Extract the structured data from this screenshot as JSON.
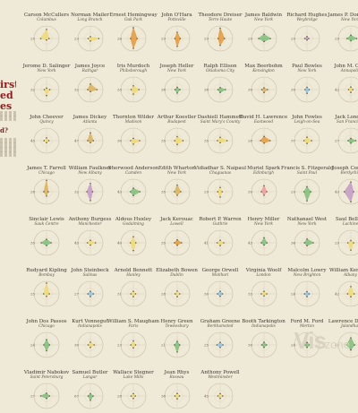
{
  "title": {
    "lines": [
      "irst",
      "ed",
      "es"
    ]
  },
  "aside_mark": "d?",
  "watermark": {
    "brand_a": "Vis",
    "brand_b": "zone"
  },
  "chart_data": {
    "type": "small-multiples-radar",
    "title": "",
    "xlabel": "",
    "ylabel": "",
    "ylim": [
      0,
      1
    ],
    "axes": [
      "a",
      "b",
      "c",
      "d"
    ],
    "palette": {
      "yellow": "#f0da73",
      "orange": "#e59a3c",
      "green": "#7ec07a",
      "blue": "#8ec3e8",
      "pink": "#ef9b9b",
      "purple": "#c59ac7",
      "mustard": "#d9b25b"
    },
    "authors": [
      {
        "name": "Carson McCullers",
        "place": "Columbus",
        "color": "yellow",
        "values": [
          0.72,
          0.2,
          0.12,
          0.46
        ],
        "label": "25"
      },
      {
        "name": "Norman Mailer",
        "place": "Long Branch",
        "color": "yellow",
        "values": [
          0.15,
          0.66,
          0.2,
          0.18
        ],
        "label": "23"
      },
      {
        "name": "Ernest Hemingway",
        "place": "Oak Park",
        "color": "orange",
        "values": [
          0.86,
          0.3,
          0.78,
          0.22
        ],
        "label": "26"
      },
      {
        "name": "John O'Hara",
        "place": "Pottsville",
        "color": "orange",
        "values": [
          0.5,
          0.24,
          0.62,
          0.18
        ],
        "label": "29"
      },
      {
        "name": "Theodore Dreiser",
        "place": "Terre Haute",
        "color": "orange",
        "values": [
          0.82,
          0.34,
          0.54,
          0.16
        ],
        "label": "29"
      },
      {
        "name": "James Baldwin",
        "place": "New York",
        "color": "green",
        "values": [
          0.34,
          0.5,
          0.24,
          0.42
        ],
        "label": "29"
      },
      {
        "name": "Richard Hughes",
        "place": "Weybridge",
        "color": "purple",
        "values": [
          0.16,
          0.14,
          0.12,
          0.18
        ],
        "label": "29"
      },
      {
        "name": "James P. Donleavy",
        "place": "New York",
        "color": "green",
        "values": [
          0.26,
          0.46,
          0.18,
          0.3
        ],
        "label": "29"
      },
      {
        "name": "Jerome D. Salinger",
        "place": "New York",
        "color": "yellow",
        "values": [
          0.12,
          0.26,
          0.48,
          0.18
        ],
        "label": "32"
      },
      {
        "name": "James Joyce",
        "place": "Rathgar",
        "color": "mustard",
        "values": [
          0.44,
          0.52,
          0.16,
          0.22
        ],
        "label": "32"
      },
      {
        "name": "Iris Murdoch",
        "place": "Phibsborough",
        "color": "yellow",
        "values": [
          0.3,
          0.44,
          0.36,
          0.18
        ],
        "label": "35"
      },
      {
        "name": "Joseph Heller",
        "place": "New York",
        "color": "green",
        "values": [
          0.18,
          0.22,
          0.28,
          0.18
        ],
        "label": "38"
      },
      {
        "name": "Ralph Ellison",
        "place": "Oklahoma City",
        "color": "green",
        "values": [
          0.16,
          0.42,
          0.22,
          0.18
        ],
        "label": "38"
      },
      {
        "name": "Max Beerbohm",
        "place": "Kensington",
        "color": "mustard",
        "values": [
          0.14,
          0.28,
          0.24,
          0.18
        ],
        "label": "39"
      },
      {
        "name": "Paul Bowles",
        "place": "New York",
        "color": "blue",
        "values": [
          0.18,
          0.18,
          0.3,
          0.16
        ],
        "label": "39"
      },
      {
        "name": "John M. Cain",
        "place": "Annapolis",
        "color": "yellow",
        "values": [
          0.2,
          0.16,
          0.22,
          0.18
        ],
        "label": "42"
      },
      {
        "name": "John Cheever",
        "place": "Quincy",
        "color": "yellow",
        "values": [
          0.22,
          0.18,
          0.16,
          0.2
        ],
        "label": "45"
      },
      {
        "name": "James Dickey",
        "place": "Atlanta",
        "color": "mustard",
        "values": [
          0.62,
          0.24,
          0.16,
          0.22
        ],
        "label": "47"
      },
      {
        "name": "Thornton Wilder",
        "place": "Madison",
        "color": "yellow",
        "values": [
          0.18,
          0.5,
          0.28,
          0.22
        ],
        "label": "30"
      },
      {
        "name": "Arthur Koestler",
        "place": "Budapest",
        "color": "yellow",
        "values": [
          0.32,
          0.46,
          0.3,
          0.2
        ],
        "label": "35"
      },
      {
        "name": "Dashiell Hammett",
        "place": "Saint Mary's County",
        "color": "yellow",
        "values": [
          0.26,
          0.54,
          0.16,
          0.22
        ],
        "label": "35"
      },
      {
        "name": "David H. Lawrence",
        "place": "Eastwood",
        "color": "orange",
        "values": [
          0.34,
          0.48,
          0.2,
          0.28
        ],
        "label": "28"
      },
      {
        "name": "John Fowles",
        "place": "Leigh-on-Sea",
        "color": "yellow",
        "values": [
          0.28,
          0.36,
          0.22,
          0.24
        ],
        "label": "37"
      },
      {
        "name": "Jack London",
        "place": "San Francisco",
        "color": "green",
        "values": [
          0.18,
          0.38,
          0.2,
          0.22
        ],
        "label": "27"
      },
      {
        "name": "James T. Farrell",
        "place": "Chicago",
        "color": "mustard",
        "values": [
          0.9,
          0.14,
          0.34,
          0.22
        ],
        "label": "28"
      },
      {
        "name": "William Faulkner",
        "place": "New Albany",
        "color": "purple",
        "values": [
          0.66,
          0.18,
          0.7,
          0.28
        ],
        "label": "32"
      },
      {
        "name": "Sherwood Anderson",
        "place": "Camden",
        "color": "green",
        "values": [
          0.28,
          0.52,
          0.3,
          0.24
        ],
        "label": "43"
      },
      {
        "name": "Edith Wharton",
        "place": "New York",
        "color": "mustard",
        "values": [
          0.52,
          0.28,
          0.28,
          0.22
        ],
        "label": "35"
      },
      {
        "name": "Vidiadhar S. Naipaul",
        "place": "Chaguanas",
        "color": "yellow",
        "values": [
          0.34,
          0.16,
          0.42,
          0.2
        ],
        "label": "29"
      },
      {
        "name": "Muriel Spark",
        "place": "Edinburgh",
        "color": "pink",
        "values": [
          0.48,
          0.22,
          0.28,
          0.22
        ],
        "label": "39"
      },
      {
        "name": "Francis S. Fitzgerald",
        "place": "Saint Paul",
        "color": "green",
        "values": [
          0.4,
          0.3,
          0.72,
          0.24
        ],
        "label": "29"
      },
      {
        "name": "Joseph Conrad",
        "place": "Berdychiv",
        "color": "purple",
        "values": [
          0.76,
          0.22,
          0.8,
          0.52
        ],
        "label": "43"
      },
      {
        "name": "Sinclair Lewis",
        "place": "Sauk Centre",
        "color": "green",
        "values": [
          0.28,
          0.36,
          0.22,
          0.42
        ],
        "label": "35"
      },
      {
        "name": "Anthony Burgess",
        "place": "Manchester",
        "color": "yellow",
        "values": [
          0.2,
          0.4,
          0.18,
          0.24
        ],
        "label": "45"
      },
      {
        "name": "Aldous Huxley",
        "place": "Godalming",
        "color": "yellow",
        "values": [
          0.48,
          0.2,
          0.62,
          0.24
        ],
        "label": "40"
      },
      {
        "name": "Jack Kerouac",
        "place": "Lowell",
        "color": "orange",
        "values": [
          0.24,
          0.34,
          0.2,
          0.22
        ],
        "label": "35"
      },
      {
        "name": "Robert P. Warren",
        "place": "Guthrie",
        "color": "yellow",
        "values": [
          0.2,
          0.28,
          0.22,
          0.24
        ],
        "label": "41"
      },
      {
        "name": "Henry Miller",
        "place": "New York",
        "color": "green",
        "values": [
          0.4,
          0.24,
          0.18,
          0.22
        ],
        "label": "43"
      },
      {
        "name": "Nathanael West",
        "place": "New York",
        "color": "green",
        "values": [
          0.3,
          0.5,
          0.24,
          0.2
        ],
        "label": "36"
      },
      {
        "name": "Saul Bellow",
        "place": "Lachine",
        "color": "yellow",
        "values": [
          0.18,
          0.22,
          0.58,
          0.24
        ],
        "label": "29"
      },
      {
        "name": "Rudyard Kipling",
        "place": "Bombay",
        "color": "yellow",
        "values": [
          0.86,
          0.22,
          0.2,
          0.24
        ],
        "label": "25"
      },
      {
        "name": "John Steinbeck",
        "place": "Salinas",
        "color": "blue",
        "values": [
          0.2,
          0.24,
          0.22,
          0.2
        ],
        "label": "27"
      },
      {
        "name": "Arnold Bennett",
        "place": "Hanley",
        "color": "yellow",
        "values": [
          0.2,
          0.18,
          0.22,
          0.2
        ],
        "label": "31"
      },
      {
        "name": "Elizabeth Bowen",
        "place": "Dublin",
        "color": "yellow",
        "values": [
          0.22,
          0.2,
          0.22,
          0.16
        ],
        "label": "28"
      },
      {
        "name": "George Orwell",
        "place": "Motihari",
        "color": "blue",
        "values": [
          0.2,
          0.18,
          0.2,
          0.22
        ],
        "label": "30"
      },
      {
        "name": "Virginia Woolf",
        "place": "London",
        "color": "yellow",
        "values": [
          0.2,
          0.22,
          0.16,
          0.22
        ],
        "label": "33"
      },
      {
        "name": "Malcolm Lowry",
        "place": "New Brighton",
        "color": "blue",
        "values": [
          0.18,
          0.18,
          0.22,
          0.2
        ],
        "label": "24"
      },
      {
        "name": "William Kennedy",
        "place": "Albany",
        "color": "yellow",
        "values": [
          0.58,
          0.26,
          0.24,
          0.26
        ],
        "label": "42"
      },
      {
        "name": "John Dos Passos",
        "place": "Chicago",
        "color": "green",
        "values": [
          0.42,
          0.24,
          0.46,
          0.22
        ],
        "label": "24"
      },
      {
        "name": "Kurt Vonnegut",
        "place": "Indianapolis",
        "color": "yellow",
        "values": [
          0.22,
          0.3,
          0.2,
          0.18
        ],
        "label": "30"
      },
      {
        "name": "William S. Maugham",
        "place": "Paris",
        "color": "yellow",
        "values": [
          0.32,
          0.18,
          0.24,
          0.2
        ],
        "label": "23"
      },
      {
        "name": "Henry Green",
        "place": "Tewkesbury",
        "color": "green",
        "values": [
          0.28,
          0.2,
          0.56,
          0.22
        ],
        "label": "21"
      },
      {
        "name": "Graham Greene",
        "place": "Berkhamsted",
        "color": "blue",
        "values": [
          0.2,
          0.22,
          0.2,
          0.26
        ],
        "label": "25"
      },
      {
        "name": "Booth Tarkington",
        "place": "Indianapolis",
        "color": "green",
        "values": [
          0.22,
          0.2,
          0.2,
          0.18
        ],
        "label": "30"
      },
      {
        "name": "Ford M. Ford",
        "place": "Merton",
        "color": "green",
        "values": [
          0.2,
          0.22,
          0.2,
          0.18
        ],
        "label": "24"
      },
      {
        "name": "Lawrence Durrell",
        "place": "Jalandhar",
        "color": "green",
        "values": [
          0.56,
          0.3,
          0.4,
          0.34
        ],
        "label": "45"
      },
      {
        "name": "Vladimir Nabokov",
        "place": "Saint Petersburg",
        "color": "green",
        "values": [
          0.22,
          0.24,
          0.2,
          0.46
        ],
        "label": "27"
      },
      {
        "name": "Samuel Butler",
        "place": "Langar",
        "color": "green",
        "values": [
          0.18,
          0.22,
          0.34,
          0.18
        ],
        "label": "67"
      },
      {
        "name": "Wallace Stegner",
        "place": "Lake Mills",
        "color": "yellow",
        "values": [
          0.18,
          0.16,
          0.2,
          0.18
        ],
        "label": "28"
      },
      {
        "name": "Jean Rhys",
        "place": "Roseau",
        "color": "yellow",
        "values": [
          0.2,
          0.18,
          0.22,
          0.18
        ],
        "label": "38"
      },
      {
        "name": "Anthony Powell",
        "place": "Westminster",
        "color": "yellow",
        "values": [
          0.18,
          0.2,
          0.18,
          0.18
        ],
        "label": "45"
      }
    ]
  }
}
